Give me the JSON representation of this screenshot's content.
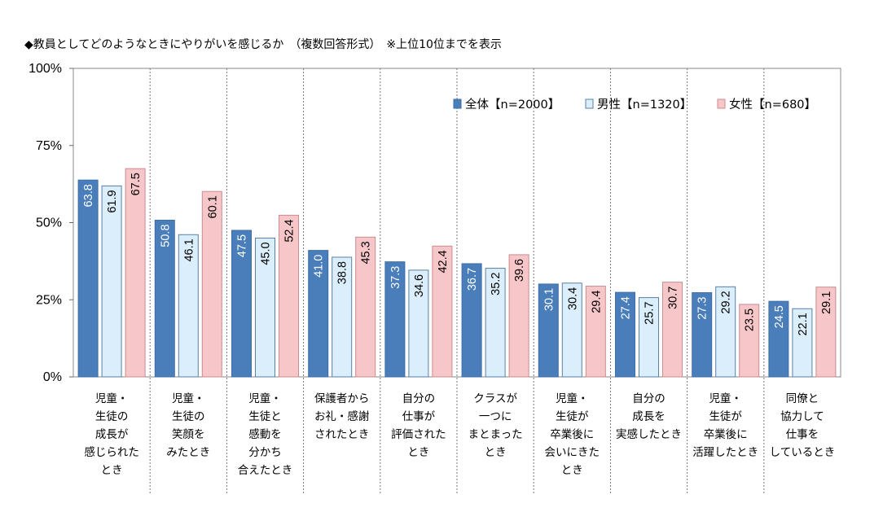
{
  "chart_data": {
    "type": "bar",
    "title": "◆教員としてどのようなときにやりがいを感じるか　（複数回答形式）　※上位10位までを表示",
    "ylim": [
      0,
      100
    ],
    "y_ticks": [
      "0%",
      "25%",
      "50%",
      "75%",
      "100%"
    ],
    "y_tick_values": [
      0,
      25,
      50,
      75,
      100
    ],
    "grid": false,
    "legend_position": "top-right",
    "categories": [
      [
        "児童・",
        "生徒の",
        "成長が",
        "感じられた",
        "とき"
      ],
      [
        "児童・",
        "生徒の",
        "笑顔を",
        "みたとき"
      ],
      [
        "児童・",
        "生徒と",
        "感動を",
        "分かち",
        "合えたとき"
      ],
      [
        "保護者から",
        "お礼・感謝",
        "されたとき"
      ],
      [
        "自分の",
        "仕事が",
        "評価された",
        "とき"
      ],
      [
        "クラスが",
        "一つに",
        "まとまった",
        "とき"
      ],
      [
        "児童・",
        "生徒が",
        "卒業後に",
        "会いにきた",
        "とき"
      ],
      [
        "自分の",
        "成長を",
        "実感したとき"
      ],
      [
        "児童・",
        "生徒が",
        "卒業後に",
        "活躍したとき"
      ],
      [
        "同僚と",
        "協力して",
        "仕事を",
        "しているとき"
      ]
    ],
    "series": [
      {
        "name": "全体【n=2000】",
        "color": "#4a7ebb",
        "label_color": "#ffffff",
        "values": [
          63.8,
          50.8,
          47.5,
          41.0,
          37.3,
          36.7,
          30.1,
          27.4,
          27.3,
          24.5
        ]
      },
      {
        "name": "男性【n=1320】",
        "color": "#dbeefb",
        "label_color": "#000000",
        "values": [
          61.9,
          46.1,
          45.0,
          38.8,
          34.6,
          35.2,
          30.4,
          25.7,
          29.2,
          22.1
        ]
      },
      {
        "name": "女性【n=680】",
        "color": "#f7c6c9",
        "label_color": "#000000",
        "values": [
          67.5,
          60.1,
          52.4,
          45.3,
          42.4,
          39.6,
          29.4,
          30.7,
          23.5,
          29.1
        ]
      }
    ]
  }
}
